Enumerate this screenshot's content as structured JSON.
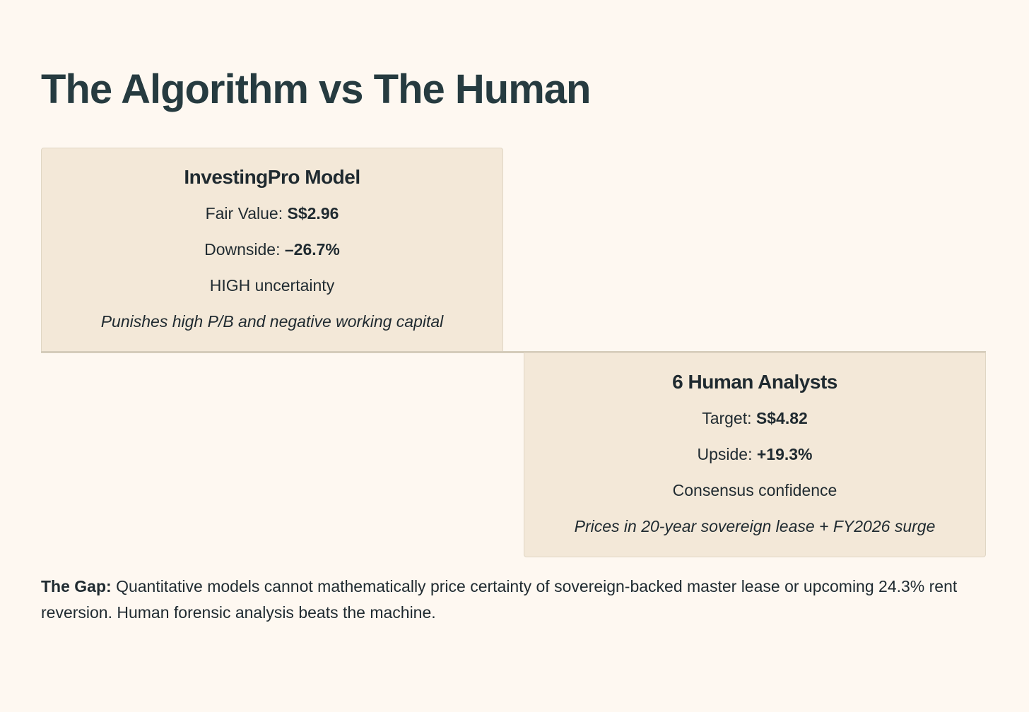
{
  "title": "The Algorithm vs The Human",
  "algorithm_card": {
    "heading": "InvestingPro Model",
    "fair_value_label": "Fair Value:",
    "fair_value": "S$2.96",
    "downside_label": "Downside:",
    "downside": "–26.7%",
    "uncertainty": "HIGH uncertainty",
    "note": "Punishes high P/B and negative working capital"
  },
  "human_card": {
    "heading": "6 Human Analysts",
    "target_label": "Target:",
    "target": "S$4.82",
    "upside_label": "Upside:",
    "upside": "+19.3%",
    "confidence": "Consensus confidence",
    "note": "Prices in 20-year sovereign lease + FY2026 surge"
  },
  "gap": {
    "label": "The Gap:",
    "text": "Quantitative models cannot mathematically price certainty of sovereign-backed master lease or upcoming 24.3% rent reversion. Human forensic analysis beats the machine."
  }
}
